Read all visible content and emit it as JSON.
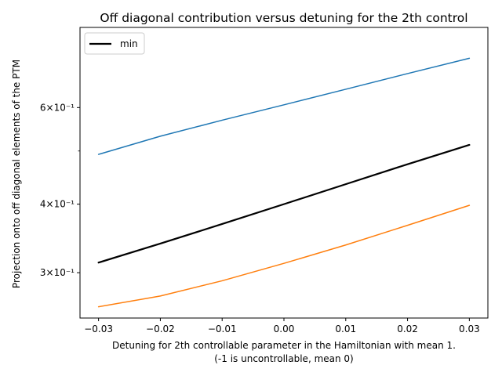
{
  "chart_data": {
    "type": "line",
    "title": "Off diagonal contribution versus detuning for the 2th control",
    "xlabel": "Detuning for 2th controllable parameter in the Hamiltonian with mean 1.",
    "xlabel2": "(-1 is uncontrollable, mean 0)",
    "ylabel": "Projection onto off diagonal elements of the PTM",
    "yscale": "log",
    "xlim": [
      -0.033,
      0.033
    ],
    "ylim": [
      0.248,
      0.84
    ],
    "grid": false,
    "legend_position": "upper-left",
    "x_ticks": [
      {
        "value": -0.03,
        "label": "−0.03"
      },
      {
        "value": -0.02,
        "label": "−0.02"
      },
      {
        "value": -0.01,
        "label": "−0.01"
      },
      {
        "value": 0.0,
        "label": "0.00"
      },
      {
        "value": 0.01,
        "label": "0.01"
      },
      {
        "value": 0.02,
        "label": "0.02"
      },
      {
        "value": 0.03,
        "label": "0.03"
      }
    ],
    "y_ticks": [
      {
        "value": 0.3,
        "label": "3×10⁻¹"
      },
      {
        "value": 0.4,
        "label": "4×10⁻¹"
      },
      {
        "value": 0.6,
        "label": "6×10⁻¹"
      }
    ],
    "y_minor_ticks": [
      0.5
    ],
    "x": [
      -0.03,
      -0.02,
      -0.01,
      0.0,
      0.01,
      0.02,
      0.03
    ],
    "series": [
      {
        "name": "",
        "color": "#1f77b4",
        "width": 1.5,
        "values": [
          0.493,
          0.532,
          0.569,
          0.607,
          0.648,
          0.692,
          0.738
        ]
      },
      {
        "name": "min",
        "color": "#000000",
        "width": 2.2,
        "values": [
          0.313,
          0.339,
          0.368,
          0.4,
          0.435,
          0.473,
          0.513
        ]
      },
      {
        "name": "",
        "color": "#ff7f0e",
        "width": 1.5,
        "values": [
          0.26,
          0.272,
          0.29,
          0.312,
          0.337,
          0.366,
          0.398
        ]
      }
    ],
    "legend": [
      {
        "label": "min",
        "color": "#000000"
      }
    ]
  }
}
